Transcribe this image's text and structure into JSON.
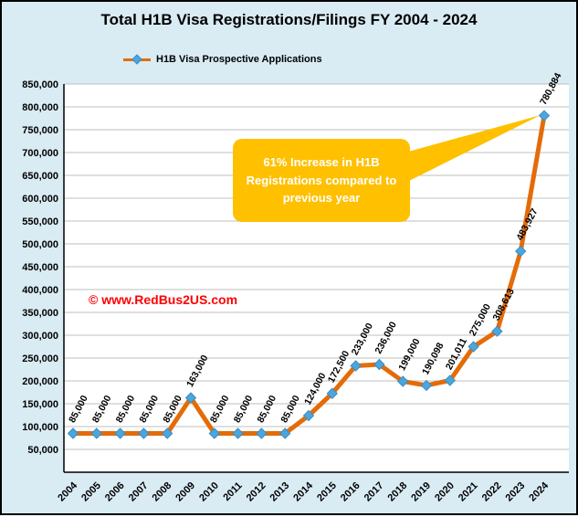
{
  "page": {
    "watermark": "© www.RedBus2US.com"
  },
  "callout": {
    "text": "61% Increase in H1B Registrations compared to previous year"
  },
  "colors": {
    "background": "#D9EBF3",
    "line": "#E36C09",
    "marker": "#4BA6DC",
    "marker_edge": "#3C8DC5",
    "grid": "#BFBFBF",
    "axis": "#000000",
    "watermark": "#FF0000",
    "callout": "#FFC000",
    "callout_text": "#FFFFFF"
  },
  "chart_data": {
    "type": "line",
    "title": "Total H1B Visa Registrations/Filings FY 2004 - 2024",
    "legend": [
      "H1B Visa Prospective Applications"
    ],
    "legend_position": "top",
    "categories": [
      "2004",
      "2005",
      "2006",
      "2007",
      "2008",
      "2009",
      "2010",
      "2011",
      "2012",
      "2013",
      "2014",
      "2015",
      "2016",
      "2017",
      "2018",
      "2019",
      "2020",
      "2021",
      "2022",
      "2023",
      "2024"
    ],
    "values": [
      85000,
      85000,
      85000,
      85000,
      85000,
      163000,
      85000,
      85000,
      85000,
      85000,
      124000,
      172500,
      233000,
      236000,
      199000,
      190098,
      201011,
      275000,
      308613,
      483927,
      780884
    ],
    "xlabel": "",
    "ylabel": "",
    "ylim": [
      0,
      850000
    ],
    "ytick_min": 50000,
    "ytick_step": 50000,
    "grid": true,
    "annotation": "61% Increase in H1B Registrations compared to previous year"
  }
}
